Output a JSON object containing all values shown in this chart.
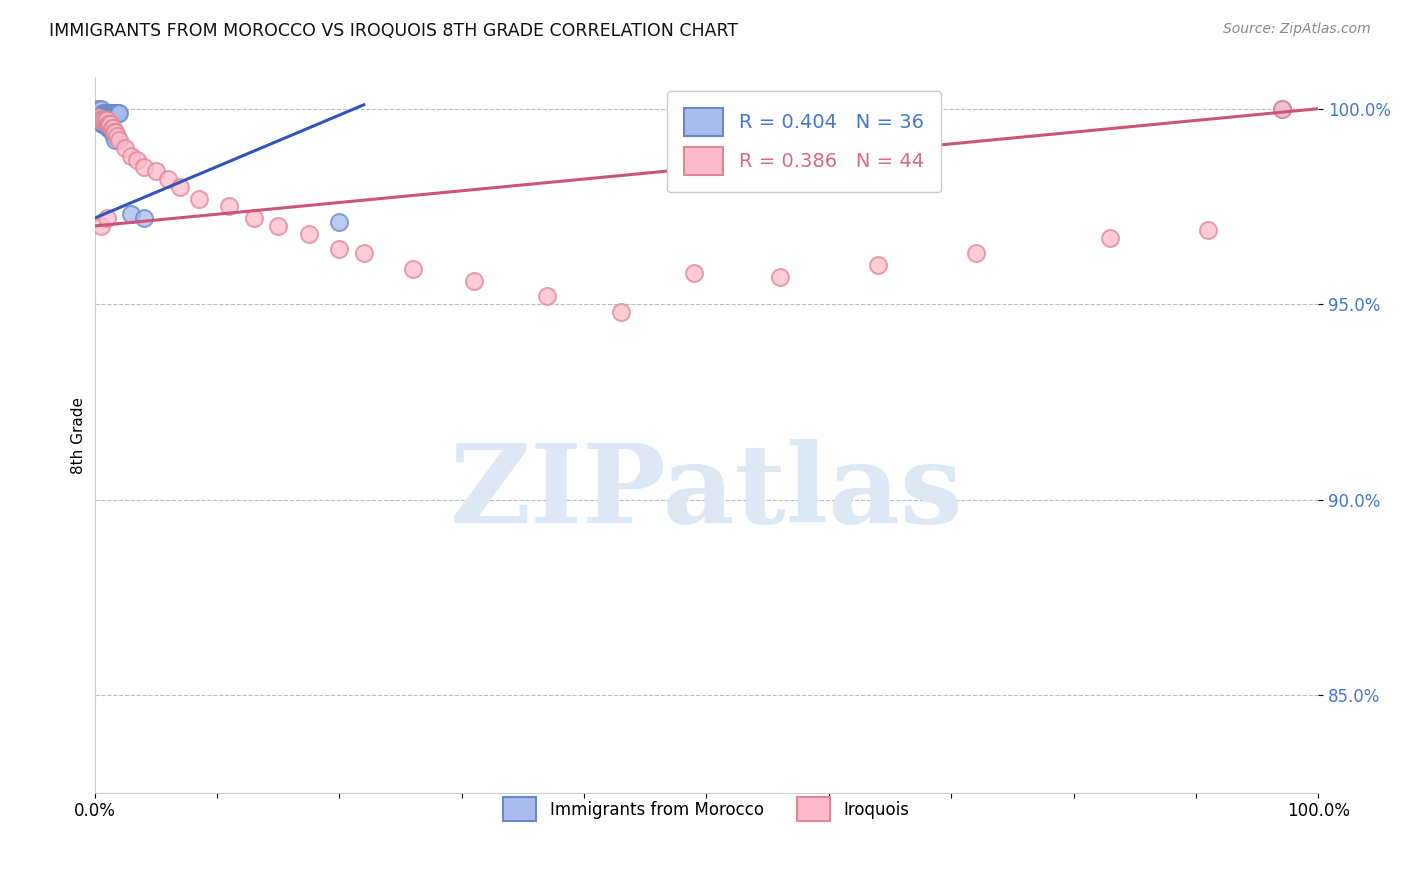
{
  "title": "IMMIGRANTS FROM MOROCCO VS IROQUOIS 8TH GRADE CORRELATION CHART",
  "source": "Source: ZipAtlas.com",
  "ylabel": "8th Grade",
  "xlim": [
    0.0,
    1.0
  ],
  "ylim": [
    0.825,
    1.008
  ],
  "yticks": [
    0.85,
    0.9,
    0.95,
    1.0
  ],
  "ytick_labels": [
    "85.0%",
    "90.0%",
    "95.0%",
    "100.0%"
  ],
  "xticks": [
    0.0,
    0.1,
    0.2,
    0.3,
    0.4,
    0.5,
    0.6,
    0.7,
    0.8,
    0.9,
    1.0
  ],
  "xtick_labels": [
    "0.0%",
    "",
    "",
    "",
    "",
    "",
    "",
    "",
    "",
    "",
    "100.0%"
  ],
  "legend1_label": "R = 0.404   N = 36",
  "legend2_label": "R = 0.386   N = 44",
  "legend1_text_color": "#4477cc",
  "legend2_text_color": "#dd6688",
  "line1_color": "#3355bb",
  "line2_color": "#cc5577",
  "scatter1_facecolor": "#aabbee",
  "scatter1_edgecolor": "#6688cc",
  "scatter2_facecolor": "#ffbbcc",
  "scatter2_edgecolor": "#dd8899",
  "watermark_text": "ZIPatlas",
  "watermark_color": "#dde8f5",
  "background_color": "#ffffff",
  "grid_color": "#bbbbbb",
  "ytick_color": "#4477cc",
  "blue_scatter_x": [
    0.003,
    0.005,
    0.007,
    0.008,
    0.009,
    0.01,
    0.011,
    0.012,
    0.013,
    0.014,
    0.015,
    0.016,
    0.017,
    0.018,
    0.019,
    0.02,
    0.003,
    0.004,
    0.005,
    0.006,
    0.006,
    0.007,
    0.008,
    0.009,
    0.01,
    0.011,
    0.012,
    0.013,
    0.014,
    0.015,
    0.016,
    0.017,
    0.03,
    0.04,
    0.2,
    0.97
  ],
  "blue_scatter_y": [
    1.0,
    1.0,
    0.999,
    0.999,
    0.999,
    0.999,
    0.999,
    0.999,
    0.999,
    0.999,
    0.999,
    0.999,
    0.999,
    0.999,
    0.999,
    0.999,
    0.997,
    0.997,
    0.997,
    0.997,
    0.996,
    0.996,
    0.996,
    0.996,
    0.996,
    0.995,
    0.995,
    0.995,
    0.994,
    0.994,
    0.993,
    0.992,
    0.973,
    0.972,
    0.971,
    1.0
  ],
  "pink_scatter_x": [
    0.003,
    0.004,
    0.005,
    0.006,
    0.007,
    0.008,
    0.009,
    0.01,
    0.011,
    0.012,
    0.013,
    0.014,
    0.015,
    0.016,
    0.017,
    0.018,
    0.02,
    0.025,
    0.03,
    0.035,
    0.04,
    0.05,
    0.06,
    0.07,
    0.085,
    0.11,
    0.13,
    0.15,
    0.175,
    0.2,
    0.22,
    0.26,
    0.31,
    0.37,
    0.43,
    0.49,
    0.56,
    0.64,
    0.72,
    0.83,
    0.91,
    0.97,
    0.005,
    0.01
  ],
  "pink_scatter_y": [
    0.998,
    0.997,
    0.997,
    0.997,
    0.997,
    0.997,
    0.997,
    0.997,
    0.996,
    0.996,
    0.996,
    0.995,
    0.995,
    0.994,
    0.994,
    0.993,
    0.992,
    0.99,
    0.988,
    0.987,
    0.985,
    0.984,
    0.982,
    0.98,
    0.977,
    0.975,
    0.972,
    0.97,
    0.968,
    0.964,
    0.963,
    0.959,
    0.956,
    0.952,
    0.948,
    0.958,
    0.957,
    0.96,
    0.963,
    0.967,
    0.969,
    1.0,
    0.97,
    0.972
  ],
  "line1_x_start": 0.0,
  "line1_x_end": 0.22,
  "line1_y_start": 0.972,
  "line1_y_end": 1.001,
  "line2_x_start": 0.0,
  "line2_x_end": 1.0,
  "line2_y_start": 0.97,
  "line2_y_end": 1.0
}
